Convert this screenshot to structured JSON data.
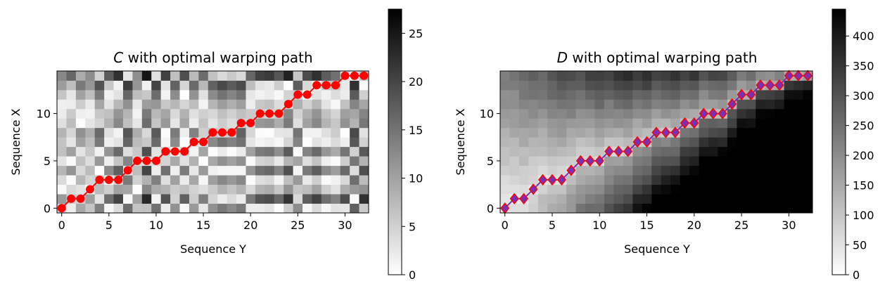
{
  "chart_data": [
    {
      "type": "heatmap",
      "matrix": "C",
      "title_var": "C",
      "title_rest": " with optimal warping path",
      "xlabel": "Sequence Y",
      "ylabel": "Sequence X",
      "x_ticks": [
        "0",
        "5",
        "10",
        "15",
        "20",
        "25",
        "30"
      ],
      "y_ticks": [
        "0",
        "5",
        "10"
      ],
      "n_cols": 33,
      "n_rows": 15,
      "colormap": "gray_r",
      "colorbar": {
        "min": 0,
        "max": 27.5,
        "ticks": [
          "0",
          "5",
          "10",
          "15",
          "20",
          "25"
        ]
      },
      "path_color": "#ff0000",
      "path_marker": "circle",
      "path": [
        [
          0,
          0
        ],
        [
          1,
          1
        ],
        [
          2,
          1
        ],
        [
          3,
          2
        ],
        [
          4,
          3
        ],
        [
          5,
          3
        ],
        [
          6,
          3
        ],
        [
          7,
          4
        ],
        [
          8,
          5
        ],
        [
          9,
          5
        ],
        [
          10,
          5
        ],
        [
          11,
          6
        ],
        [
          12,
          6
        ],
        [
          13,
          6
        ],
        [
          14,
          7
        ],
        [
          15,
          7
        ],
        [
          16,
          8
        ],
        [
          17,
          8
        ],
        [
          18,
          8
        ],
        [
          19,
          9
        ],
        [
          20,
          9
        ],
        [
          21,
          10
        ],
        [
          22,
          10
        ],
        [
          23,
          10
        ],
        [
          24,
          11
        ],
        [
          25,
          12
        ],
        [
          26,
          12
        ],
        [
          27,
          13
        ],
        [
          28,
          13
        ],
        [
          29,
          13
        ],
        [
          30,
          14
        ],
        [
          31,
          14
        ],
        [
          32,
          14
        ]
      ]
    },
    {
      "type": "heatmap",
      "matrix": "D",
      "title_var": "D",
      "title_rest": " with optimal warping path",
      "xlabel": "Sequence Y",
      "ylabel": "Sequence X",
      "x_ticks": [
        "0",
        "5",
        "10",
        "15",
        "20",
        "25",
        "30"
      ],
      "y_ticks": [
        "0",
        "5",
        "10"
      ],
      "n_cols": 33,
      "n_rows": 15,
      "colormap": "gray_r",
      "colorbar": {
        "min": 0,
        "max": 445,
        "ticks": [
          "0",
          "50",
          "100",
          "150",
          "200",
          "250",
          "300",
          "350",
          "400"
        ]
      },
      "path_color": "#ff0000",
      "path_line_color": "#7b2fb5",
      "path_marker": "diamond",
      "path": [
        [
          0,
          0
        ],
        [
          1,
          1
        ],
        [
          2,
          1
        ],
        [
          3,
          2
        ],
        [
          4,
          3
        ],
        [
          5,
          3
        ],
        [
          6,
          3
        ],
        [
          7,
          4
        ],
        [
          8,
          5
        ],
        [
          9,
          5
        ],
        [
          10,
          5
        ],
        [
          11,
          6
        ],
        [
          12,
          6
        ],
        [
          13,
          6
        ],
        [
          14,
          7
        ],
        [
          15,
          7
        ],
        [
          16,
          8
        ],
        [
          17,
          8
        ],
        [
          18,
          8
        ],
        [
          19,
          9
        ],
        [
          20,
          9
        ],
        [
          21,
          10
        ],
        [
          22,
          10
        ],
        [
          23,
          10
        ],
        [
          24,
          11
        ],
        [
          25,
          12
        ],
        [
          26,
          12
        ],
        [
          27,
          13
        ],
        [
          28,
          13
        ],
        [
          29,
          13
        ],
        [
          30,
          14
        ],
        [
          31,
          14
        ],
        [
          32,
          14
        ]
      ]
    }
  ]
}
